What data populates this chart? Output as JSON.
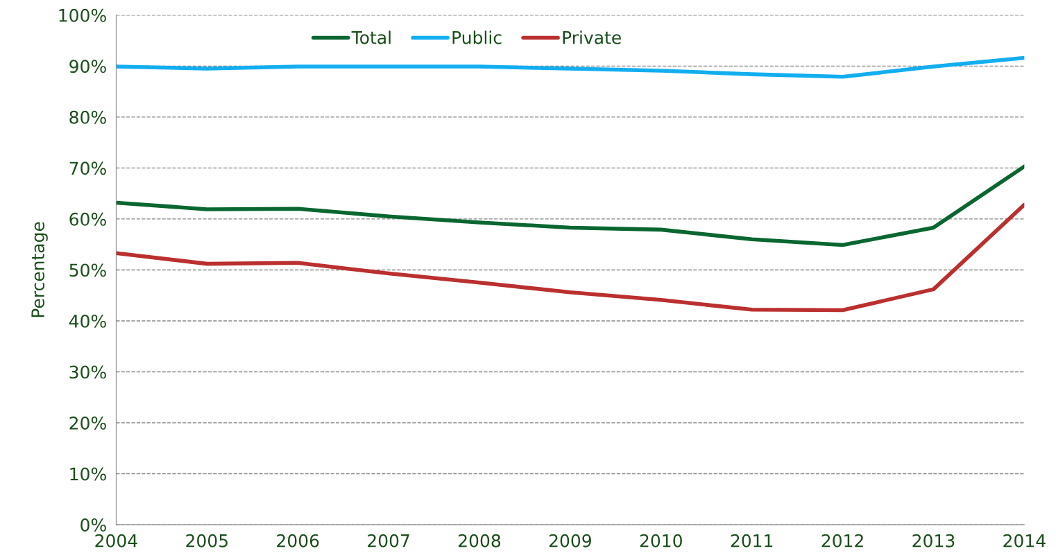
{
  "chart_data": {
    "type": "line",
    "ylabel": "Percentage",
    "x": [
      2004,
      2005,
      2006,
      2007,
      2008,
      2009,
      2010,
      2011,
      2012,
      2013,
      2014
    ],
    "series": [
      {
        "name": "Total",
        "color": "#0a6630",
        "values": [
          63.2,
          61.9,
          62.0,
          60.5,
          59.3,
          58.3,
          57.9,
          56.0,
          54.9,
          58.3,
          70.3
        ]
      },
      {
        "name": "Public",
        "color": "#12aef0",
        "values": [
          89.9,
          89.5,
          89.9,
          89.9,
          89.9,
          89.5,
          89.1,
          88.4,
          87.9,
          89.9,
          91.6
        ]
      },
      {
        "name": "Private",
        "color": "#bb2f2f",
        "values": [
          53.3,
          51.2,
          51.4,
          49.3,
          47.5,
          45.6,
          44.1,
          42.2,
          42.1,
          46.2,
          62.8
        ]
      }
    ],
    "xlim": [
      2004,
      2014
    ],
    "xticks": [
      2004,
      2005,
      2006,
      2007,
      2008,
      2009,
      2010,
      2011,
      2012,
      2013,
      2014
    ],
    "ylim": [
      0,
      100
    ],
    "yticks": [
      {
        "value": 0,
        "label": "0%"
      },
      {
        "value": 10,
        "label": "10%"
      },
      {
        "value": 20,
        "label": "20%"
      },
      {
        "value": 30,
        "label": "30%"
      },
      {
        "value": 40,
        "label": "40%"
      },
      {
        "value": 50,
        "label": "50%"
      },
      {
        "value": 60,
        "label": "60%"
      },
      {
        "value": 70,
        "label": "70%"
      },
      {
        "value": 80,
        "label": "80%"
      },
      {
        "value": 90,
        "label": "90%"
      },
      {
        "value": 100,
        "label": "100%"
      }
    ],
    "grid": "y",
    "legend": "top left",
    "marker": "none",
    "line_style": "solid"
  }
}
